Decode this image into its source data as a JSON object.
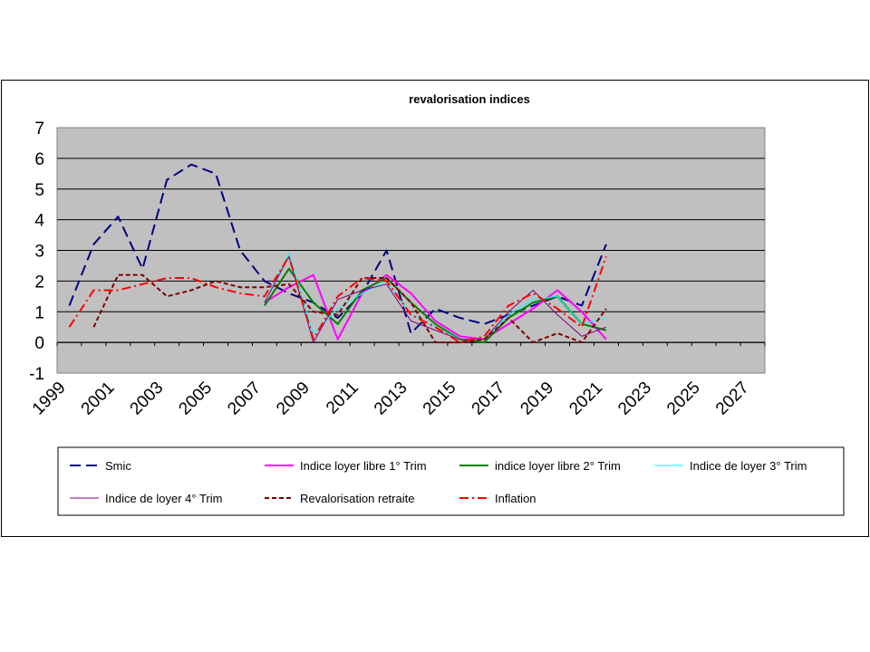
{
  "chart_data": {
    "type": "line",
    "title": "revalorisation indices",
    "xlabel": "",
    "ylabel": "",
    "xlim": [
      1999,
      2028
    ],
    "ylim": [
      -1,
      7
    ],
    "yticks": [
      "-1",
      "0",
      "1",
      "2",
      "3",
      "4",
      "5",
      "6",
      "7"
    ],
    "xticks": [
      "1999",
      "2001",
      "2003",
      "2005",
      "2007",
      "2009",
      "2011",
      "2013",
      "2015",
      "2017",
      "2019",
      "2021",
      "2023",
      "2025",
      "2027"
    ],
    "grid": true,
    "plot_background": "#c0c0c0",
    "legend_position": "bottom",
    "series": [
      {
        "name": "Smic",
        "color": "#000080",
        "dash": "long-dash",
        "width": 2,
        "x": [
          1999.5,
          2000.5,
          2001.5,
          2002.5,
          2003.5,
          2004.5,
          2005.5,
          2006.5,
          2007.5,
          2008.5,
          2009.5,
          2010.5,
          2011.5,
          2012.5,
          2013.5,
          2014.5,
          2015.5,
          2016.5,
          2017.5,
          2018.5,
          2019.5,
          2020.5,
          2021.5
        ],
        "y": [
          1.2,
          3.2,
          4.1,
          2.4,
          5.3,
          5.8,
          5.5,
          3.0,
          2.0,
          1.6,
          1.3,
          0.8,
          1.6,
          3.0,
          0.3,
          1.1,
          0.8,
          0.6,
          0.9,
          1.2,
          1.5,
          1.2,
          3.2
        ]
      },
      {
        "name": "Indice loyer libre 1° Trim",
        "color": "#ff00ff",
        "dash": "solid",
        "width": 2,
        "x": [
          2007.5,
          2008.5,
          2009.5,
          2010.5,
          2011.5,
          2012.5,
          2013.5,
          2014.5,
          2015.5,
          2016.5,
          2017.5,
          2018.5,
          2019.5,
          2020.5,
          2021.5
        ],
        "y": [
          1.3,
          1.8,
          2.2,
          0.1,
          1.6,
          2.2,
          1.6,
          0.7,
          0.2,
          0.1,
          0.6,
          1.1,
          1.7,
          1.0,
          0.1
        ]
      },
      {
        "name": "indice loyer libre 2° Trim",
        "color": "#008000",
        "dash": "solid",
        "width": 2,
        "x": [
          2007.5,
          2008.5,
          2009.5,
          2010.5,
          2011.5,
          2012.5,
          2013.5,
          2014.5,
          2015.5,
          2016.5,
          2017.5,
          2018.5,
          2019.5,
          2020.5,
          2021.5
        ],
        "y": [
          1.2,
          2.4,
          1.3,
          0.6,
          1.7,
          2.1,
          1.3,
          0.6,
          0.1,
          0.0,
          0.8,
          1.3,
          1.5,
          0.6,
          0.4
        ]
      },
      {
        "name": "Indice de loyer 3° Trim",
        "color": "#00ffff",
        "dash": "solid",
        "width": 1,
        "x": [
          2007.5,
          2008.5,
          2009.5,
          2010.5,
          2011.5,
          2012.5,
          2013.5,
          2014.5,
          2015.5,
          2016.5,
          2017.5,
          2018.5,
          2019.5,
          2020.5,
          2021.5
        ],
        "y": [
          1.3,
          2.9,
          0.3,
          1.1,
          1.6,
          2.0,
          0.9,
          0.5,
          0.1,
          0.1,
          0.9,
          1.4,
          1.5,
          0.6,
          0.8
        ]
      },
      {
        "name": "Indice de loyer 4° Trim",
        "color": "#800080",
        "dash": "solid",
        "width": 1,
        "x": [
          2007.5,
          2008.5,
          2009.5,
          2010.5,
          2011.5,
          2012.5,
          2013.5,
          2014.5,
          2015.5,
          2016.5,
          2017.5,
          2018.5,
          2019.5,
          2020.5,
          2021.5
        ],
        "y": [
          1.3,
          2.8,
          0.0,
          1.4,
          1.7,
          1.9,
          0.7,
          0.4,
          0.1,
          0.1,
          1.0,
          1.7,
          0.9,
          0.2,
          0.5
        ]
      },
      {
        "name": "Revalorisation retraite",
        "color": "#800000",
        "dash": "short-dash",
        "width": 2,
        "x": [
          2000.5,
          2001.5,
          2002.5,
          2003.5,
          2004.5,
          2005.5,
          2006.5,
          2007.5,
          2008.5,
          2009.5,
          2010.5,
          2011.5,
          2012.5,
          2013.5,
          2014.5,
          2015.5,
          2016.5,
          2017.5,
          2018.5,
          2019.5,
          2020.5,
          2021.5
        ],
        "y": [
          0.5,
          2.2,
          2.2,
          1.5,
          1.7,
          2.0,
          1.8,
          1.8,
          1.9,
          1.0,
          0.9,
          2.1,
          2.1,
          1.3,
          0.0,
          0.0,
          0.1,
          0.8,
          0.0,
          0.3,
          0.0,
          1.1
        ]
      },
      {
        "name": "Inflation",
        "color": "#ff0000",
        "dash": "dash-dot",
        "width": 2,
        "x": [
          1999.5,
          2000.5,
          2001.5,
          2002.5,
          2003.5,
          2004.5,
          2005.5,
          2006.5,
          2007.5,
          2008.5,
          2009.5,
          2010.5,
          2011.5,
          2012.5,
          2013.5,
          2014.5,
          2015.5,
          2016.5,
          2017.5,
          2018.5,
          2019.5,
          2020.5,
          2021.5
        ],
        "y": [
          0.5,
          1.7,
          1.7,
          1.9,
          2.1,
          2.1,
          1.8,
          1.6,
          1.5,
          2.8,
          0.1,
          1.5,
          2.1,
          2.0,
          0.9,
          0.5,
          0.0,
          0.2,
          1.2,
          1.6,
          1.1,
          0.5,
          2.8
        ]
      }
    ]
  }
}
